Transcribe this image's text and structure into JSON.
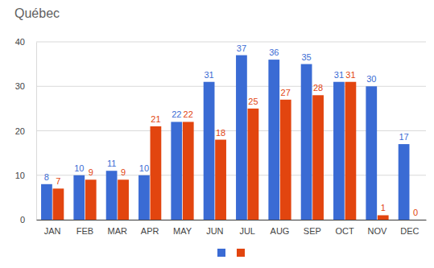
{
  "chart_data": {
    "type": "bar",
    "title": "Québec",
    "categories": [
      "JAN",
      "FEB",
      "MAR",
      "APR",
      "MAY",
      "JUN",
      "JUL",
      "AUG",
      "SEP",
      "OCT",
      "NOV",
      "DEC"
    ],
    "series": [
      {
        "color": "#3a6bd4",
        "values": [
          8,
          10,
          11,
          10,
          22,
          31,
          37,
          36,
          35,
          31,
          30,
          17
        ]
      },
      {
        "color": "#e2450f",
        "values": [
          7,
          9,
          9,
          21,
          22,
          18,
          25,
          27,
          28,
          31,
          1,
          0
        ]
      }
    ],
    "ylim": [
      0,
      40
    ],
    "yticks": [
      0,
      10,
      20,
      30,
      40
    ],
    "grid": true,
    "legend": "bottom",
    "data_labels": true
  }
}
